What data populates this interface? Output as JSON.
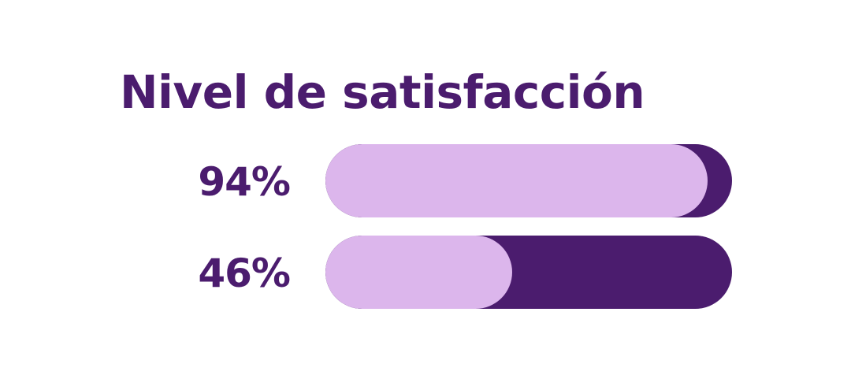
{
  "title": "Nivel de satisfacción",
  "colors": {
    "text": "#4b1c6e",
    "track": "#4b1c6e",
    "fill": "#dcb6ec",
    "background": "#ffffff"
  },
  "chart_data": {
    "type": "bar",
    "orientation": "horizontal",
    "title": "Nivel de satisfacción",
    "xlim": [
      0,
      100
    ],
    "grid": false,
    "legend": "none",
    "bars": [
      {
        "label": "94%",
        "value": 94
      },
      {
        "label": "46%",
        "value": 46
      }
    ]
  }
}
